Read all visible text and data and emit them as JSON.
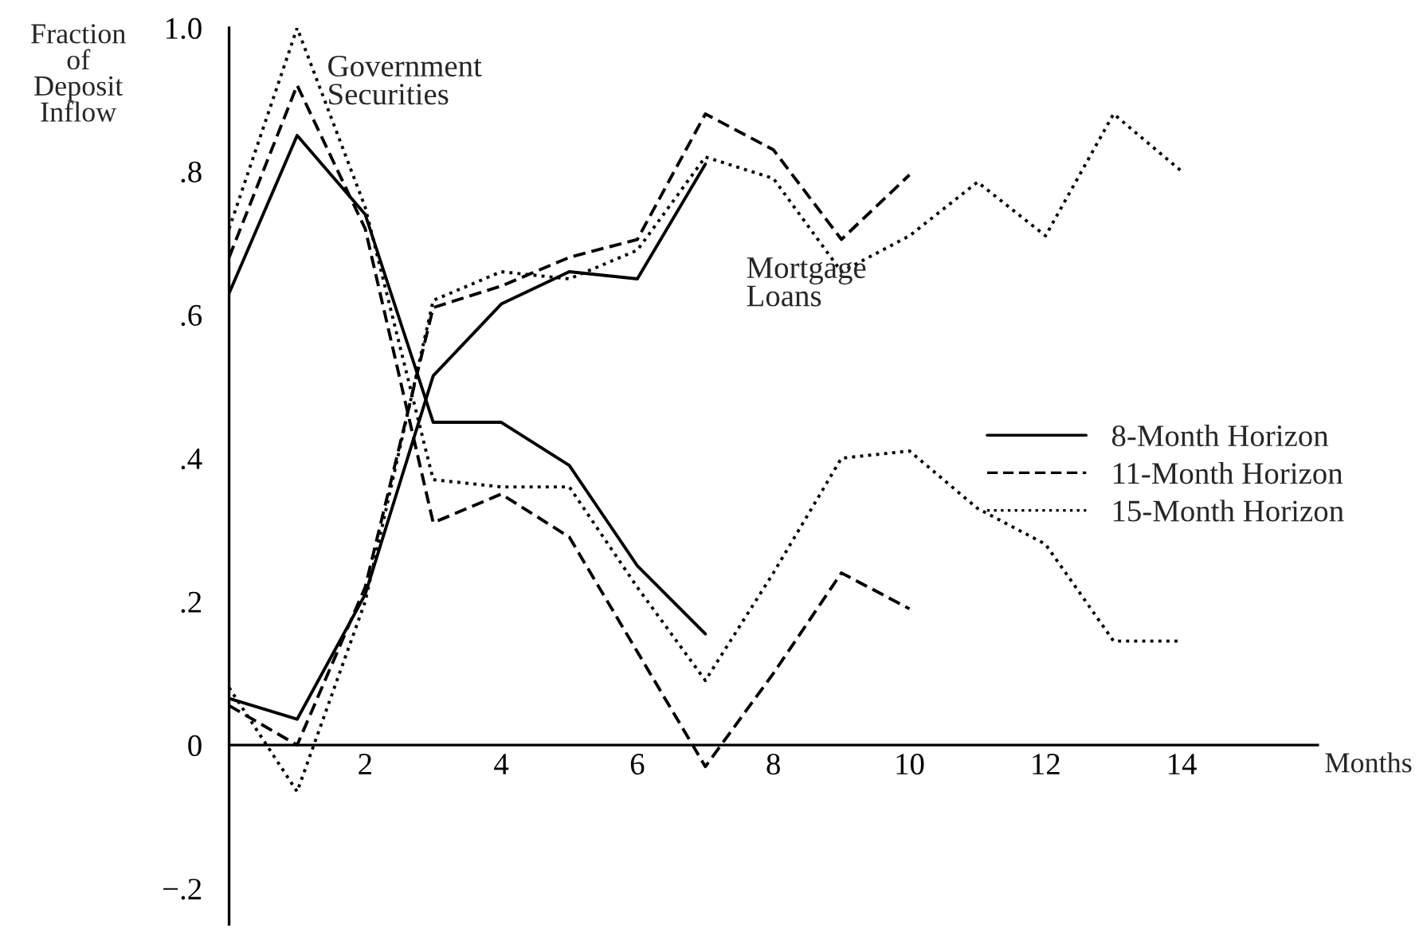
{
  "chart_data": {
    "type": "line",
    "ylabel": "Fraction\nof\nDeposit\nInflow",
    "xlabel": "Months",
    "annotations": [
      "Government\nSecurities",
      "Mortgage\nLoans"
    ],
    "series": [
      {
        "name": "8-Month Horizon",
        "color": "#000000",
        "line_style": "solid",
        "x": [
          0,
          1,
          2,
          3,
          4,
          5,
          6,
          7
        ],
        "values": [
          0.63,
          0.85,
          0.74,
          0.45,
          0.45,
          0.39,
          0.25,
          0.155
        ]
      },
      {
        "name": "11-Month Horizon",
        "color": "#000000",
        "line_style": "dashed",
        "x": [
          0,
          1,
          2,
          3,
          4,
          5,
          6,
          7,
          8,
          9,
          10
        ],
        "values": [
          0.68,
          0.92,
          0.72,
          0.31,
          0.35,
          0.29,
          0.13,
          -0.03,
          0.1,
          0.24,
          0.19
        ]
      },
      {
        "name": "15-Month Horizon",
        "color": "#000000",
        "line_style": "dotted",
        "x": [
          0,
          1,
          2,
          3,
          4,
          5,
          6,
          7,
          8,
          9,
          10,
          11,
          12,
          13,
          14
        ],
        "values": [
          0.72,
          1.0,
          0.75,
          0.37,
          0.36,
          0.36,
          0.22,
          0.09,
          0.24,
          0.4,
          0.41,
          0.33,
          0.28,
          0.145,
          0.145
        ]
      },
      {
        "color": "#000000",
        "line_style": "solid",
        "x": [
          0,
          1,
          2,
          3,
          4,
          5,
          6,
          7
        ],
        "values": [
          0.065,
          0.036,
          0.21,
          0.515,
          0.615,
          0.66,
          0.65,
          0.81
        ]
      },
      {
        "color": "#000000",
        "line_style": "dashed",
        "x": [
          0,
          1,
          2,
          3,
          4,
          5,
          6,
          7,
          8,
          9,
          10
        ],
        "values": [
          0.055,
          0.0,
          0.22,
          0.61,
          0.64,
          0.68,
          0.705,
          0.88,
          0.83,
          0.705,
          0.795
        ]
      },
      {
        "color": "#000000",
        "line_style": "dotted",
        "x": [
          0,
          1,
          2,
          3,
          4,
          5,
          6,
          7,
          8,
          9,
          10,
          11,
          12,
          13,
          14
        ],
        "values": [
          0.08,
          -0.065,
          0.2,
          0.62,
          0.66,
          0.65,
          0.69,
          0.82,
          0.79,
          0.66,
          0.71,
          0.785,
          0.71,
          0.88,
          0.8
        ]
      }
    ],
    "xlim": [
      0,
      16
    ],
    "ylim": [
      -0.25,
      1.0
    ],
    "xticks": [
      2,
      4,
      6,
      8,
      10,
      12,
      14
    ],
    "yticks": [
      {
        "value": -0.2,
        "label": "−.2"
      },
      0,
      {
        "value": 0.2,
        "label": ".2"
      },
      {
        "value": 0.4,
        "label": ".4"
      },
      {
        "value": 0.6,
        "label": ".6"
      },
      {
        "value": 0.8,
        "label": ".8"
      },
      {
        "value": 1.0,
        "label": "1.0"
      }
    ],
    "grid": false,
    "legend": "right"
  }
}
